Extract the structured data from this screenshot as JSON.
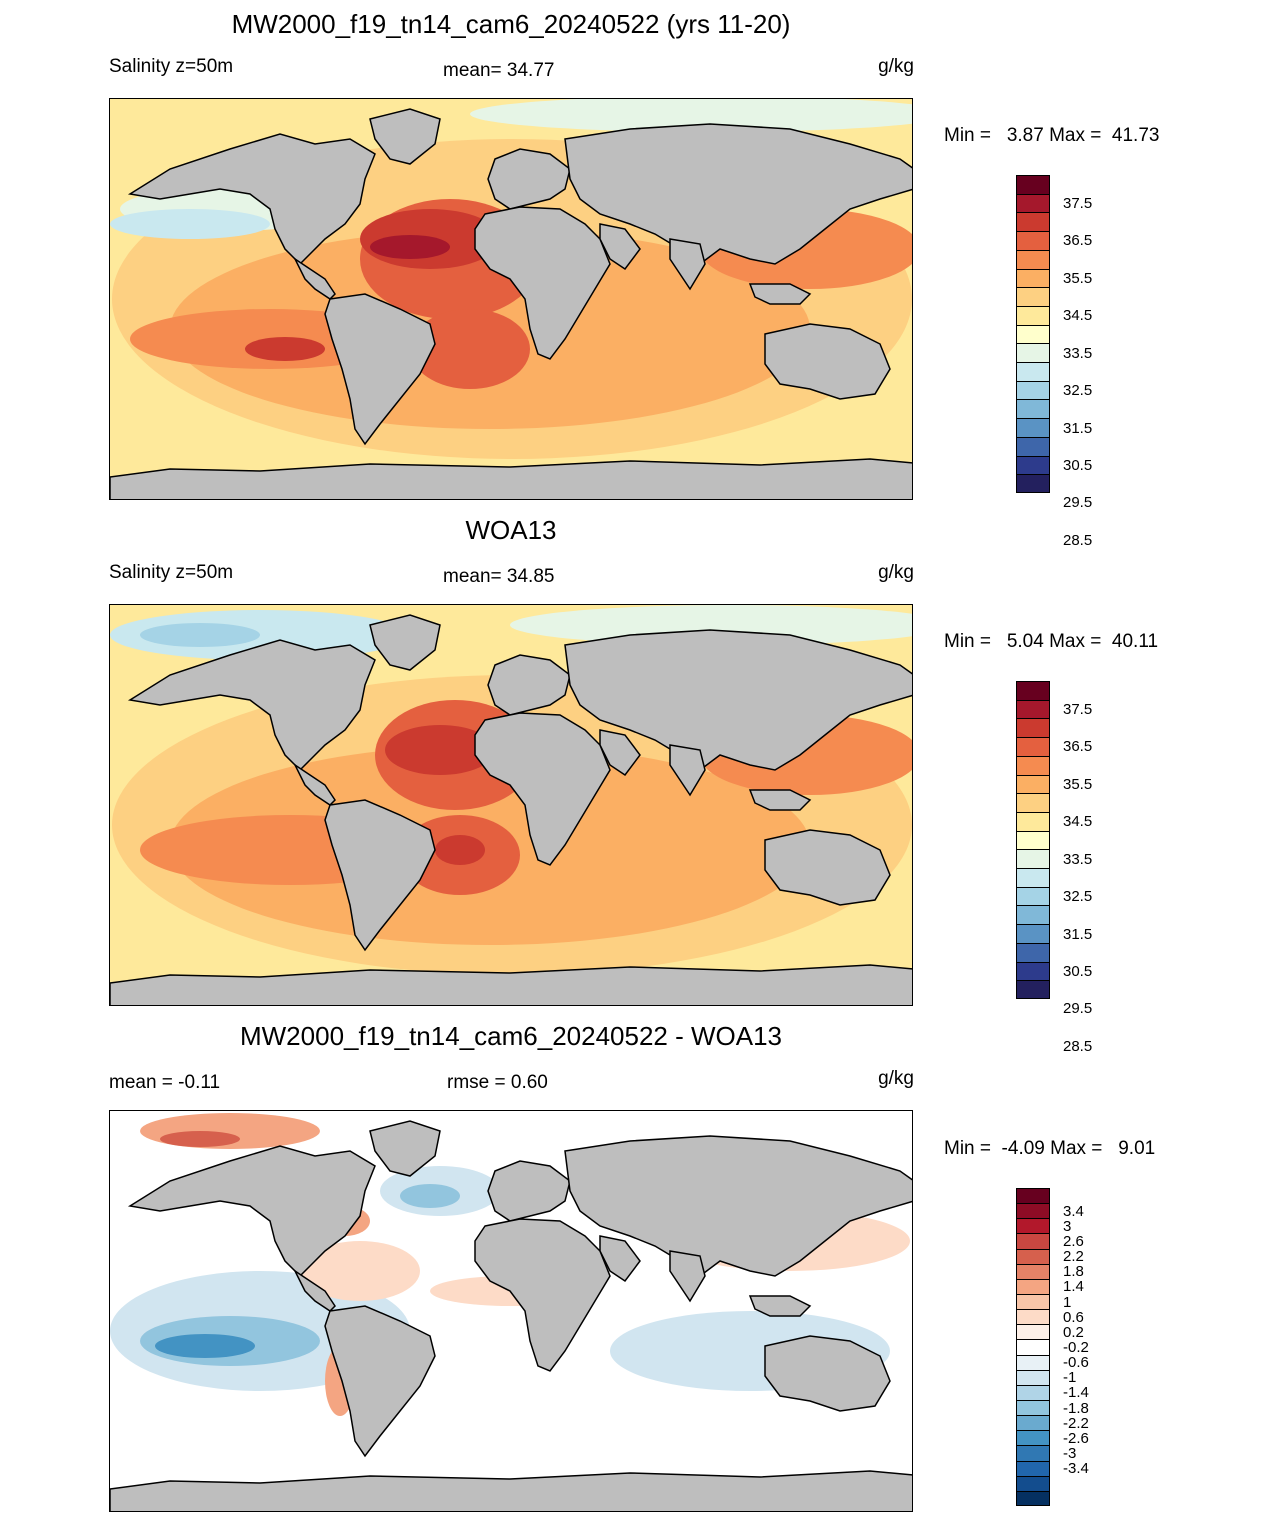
{
  "panels": [
    {
      "title": "MW2000_f19_tn14_cam6_20240522 (yrs 11-20)",
      "left_label": "Salinity z=50m",
      "center_label": "mean=  34.77",
      "units": "g/kg",
      "minmax": "Min =   3.87 Max =  41.73",
      "colorbar_labels": [
        "37.5",
        "36.5",
        "35.5",
        "34.5",
        "33.5",
        "32.5",
        "31.5",
        "30.5",
        "29.5",
        "28.5"
      ],
      "colors": [
        "#67001f",
        "#a5182c",
        "#cb3a2f",
        "#e4603f",
        "#f58b50",
        "#fbaf63",
        "#fdd082",
        "#fee99b",
        "#ffffcc",
        "#e6f5e6",
        "#c9e8ef",
        "#a5d3e6",
        "#80b8d8",
        "#5a93c4",
        "#3e66aa",
        "#2d3b8c",
        "#23205e"
      ]
    },
    {
      "title": "WOA13",
      "left_label": "Salinity z=50m",
      "center_label": "mean=  34.85",
      "units": "g/kg",
      "minmax": "Min =   5.04 Max =  40.11",
      "colorbar_labels": [
        "37.5",
        "36.5",
        "35.5",
        "34.5",
        "33.5",
        "32.5",
        "31.5",
        "30.5",
        "29.5",
        "28.5"
      ],
      "colors": [
        "#67001f",
        "#a5182c",
        "#cb3a2f",
        "#e4603f",
        "#f58b50",
        "#fbaf63",
        "#fdd082",
        "#fee99b",
        "#ffffcc",
        "#e6f5e6",
        "#c9e8ef",
        "#a5d3e6",
        "#80b8d8",
        "#5a93c4",
        "#3e66aa",
        "#2d3b8c",
        "#23205e"
      ]
    },
    {
      "title": "MW2000_f19_tn14_cam6_20240522 - WOA13",
      "left_label": "mean =  -0.11",
      "center_label": "rmse =   0.60",
      "units": "g/kg",
      "minmax": "Min =  -4.09 Max =   9.01",
      "colorbar_labels": [
        "3.4",
        "3",
        "2.6",
        "2.2",
        "1.8",
        "1.4",
        "1",
        "0.6",
        "0.2",
        "-0.2",
        "-0.6",
        "-1",
        "-1.4",
        "-1.8",
        "-2.2",
        "-2.6",
        "-3",
        "-3.4"
      ],
      "colors": [
        "#67001f",
        "#8e0c25",
        "#b2182b",
        "#c94741",
        "#d6604d",
        "#e58267",
        "#f4a582",
        "#f8c5a8",
        "#fddbc7",
        "#fdf0e8",
        "#ffffff",
        "#e8f1f6",
        "#d1e5f0",
        "#b0d4e7",
        "#92c5de",
        "#6aaacf",
        "#4393c3",
        "#3078b3",
        "#2166ac",
        "#134d8e",
        "#053061"
      ]
    }
  ],
  "colors": {
    "land": "#bebebe",
    "coast": "#000000"
  }
}
